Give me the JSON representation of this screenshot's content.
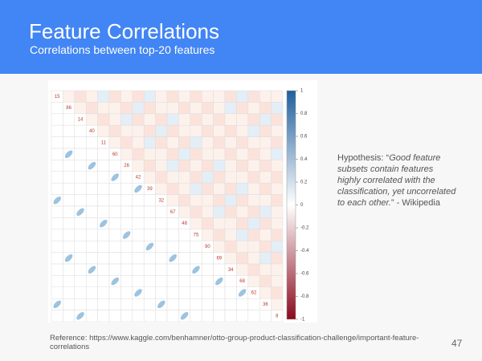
{
  "header": {
    "title": "Feature Correlations",
    "subtitle": "Correlations between top-20 features"
  },
  "figure": {
    "features": [
      "15",
      "86",
      "14",
      "40",
      "11",
      "60",
      "26",
      "42",
      "39",
      "32",
      "67",
      "48",
      "75",
      "90",
      "69",
      "34",
      "68",
      "62",
      "36",
      "8"
    ],
    "colorbar": {
      "lim": [
        -1,
        1
      ],
      "ticks": [
        1,
        0.8,
        0.6,
        0.4,
        0.2,
        0,
        -0.2,
        -0.4,
        -0.6,
        -0.8,
        -1
      ]
    }
  },
  "hypothesis": {
    "prefix": "Hypothesis: “",
    "quote": "Good feature subsets contain features highly correlated with the classification, yet uncorrelated to each other.",
    "suffix": "” - Wikipedia"
  },
  "reference": "Reference: https://www.kaggle.com/benhamner/otto-group-product-classification-challenge/important-feature-correlations",
  "page_number": "47"
}
